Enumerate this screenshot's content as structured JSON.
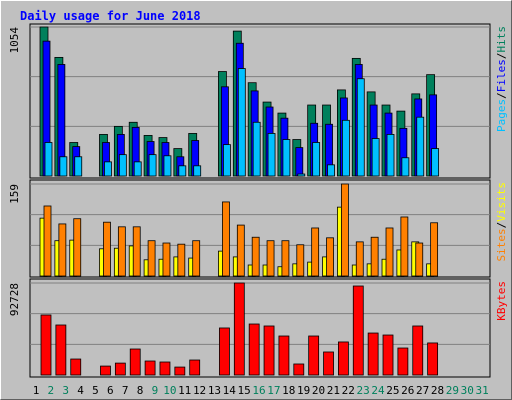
{
  "chart_data": {
    "type": "bar",
    "title": "Daily usage for June 2018",
    "legend_separator": "/",
    "categories": [
      "1",
      "2",
      "3",
      "4",
      "5",
      "6",
      "7",
      "8",
      "9",
      "10",
      "11",
      "12",
      "13",
      "14",
      "15",
      "16",
      "17",
      "18",
      "19",
      "20",
      "21",
      "22",
      "23",
      "24",
      "25",
      "26",
      "27",
      "28",
      "29",
      "30",
      "31"
    ],
    "category_colors": [
      "#000000",
      "#00805c",
      "#00805c",
      "#000000",
      "#000000",
      "#000000",
      "#000000",
      "#000000",
      "#00805c",
      "#00805c",
      "#000000",
      "#000000",
      "#000000",
      "#000000",
      "#000000",
      "#00805c",
      "#00805c",
      "#000000",
      "#000000",
      "#000000",
      "#000000",
      "#000000",
      "#00805c",
      "#00805c",
      "#000000",
      "#000000",
      "#000000",
      "#000000",
      "#00805c",
      "#00805c",
      "#00805c"
    ],
    "panels": [
      {
        "ylim": [
          0,
          1054
        ],
        "yticks": [
          1054
        ],
        "series": [
          {
            "name": "Hits",
            "color": "#00805c",
            "values": [
              1054,
              839,
              237,
              0,
              294,
              351,
              380,
              287,
              272,
              194,
              301,
              0,
              739,
              1025,
              660,
              523,
              445,
              258,
              502,
              502,
              609,
              832,
              595,
              502,
              459,
              581,
              717,
              0,
              0,
              0,
              0
            ]
          },
          {
            "name": "Files",
            "color": "#0000ff",
            "values": [
              954,
              789,
              208,
              0,
              237,
              294,
              344,
              244,
              237,
              136,
              251,
              0,
              631,
              939,
              602,
              488,
              409,
              201,
              373,
              366,
              552,
              789,
              502,
              445,
              337,
              545,
              574,
              0,
              0,
              0,
              0
            ]
          },
          {
            "name": "Pages",
            "color": "#00c0ff",
            "values": [
              237,
              136,
              136,
              0,
              100,
              151,
              100,
              151,
              143,
              72,
              72,
              0,
              222,
              760,
              380,
              301,
              258,
              14,
              237,
              79,
              394,
              688,
              265,
              294,
              129,
              416,
              194,
              0,
              0,
              0,
              0
            ]
          }
        ]
      },
      {
        "ylim": [
          0,
          159
        ],
        "yticks": [
          159
        ],
        "series": [
          {
            "name": "Visits",
            "color": "#ffff00",
            "values": [
              100,
              61,
              62,
              0,
              47,
              48,
              52,
              28,
              29,
              33,
              31,
              0,
              43,
              33,
              19,
              19,
              16,
              21,
              24,
              33,
              119,
              19,
              21,
              29,
              45,
              59,
              21,
              0,
              0,
              0,
              0
            ]
          },
          {
            "name": "Sites",
            "color": "#ff8000",
            "values": [
              121,
              90,
              99,
              0,
              93,
              85,
              85,
              61,
              57,
              55,
              61,
              0,
              128,
              88,
              67,
              61,
              61,
              54,
              83,
              66,
              159,
              59,
              67,
              83,
              102,
              57,
              92,
              0,
              0,
              0,
              0
            ]
          }
        ]
      },
      {
        "ylim": [
          0,
          92728
        ],
        "yticks": [
          92728
        ],
        "series": [
          {
            "name": "KBytes",
            "color": "#ff0000",
            "values": [
              60480,
              50400,
              16100,
              0,
              9000,
              12000,
              26200,
              14100,
              13100,
              8000,
              15100,
              0,
              47400,
              92728,
              51400,
              49400,
              39300,
              11100,
              39300,
              23200,
              33300,
              89700,
              42300,
              40300,
              27200,
              49400,
              32300,
              0,
              0,
              0,
              0
            ]
          }
        ]
      }
    ]
  }
}
